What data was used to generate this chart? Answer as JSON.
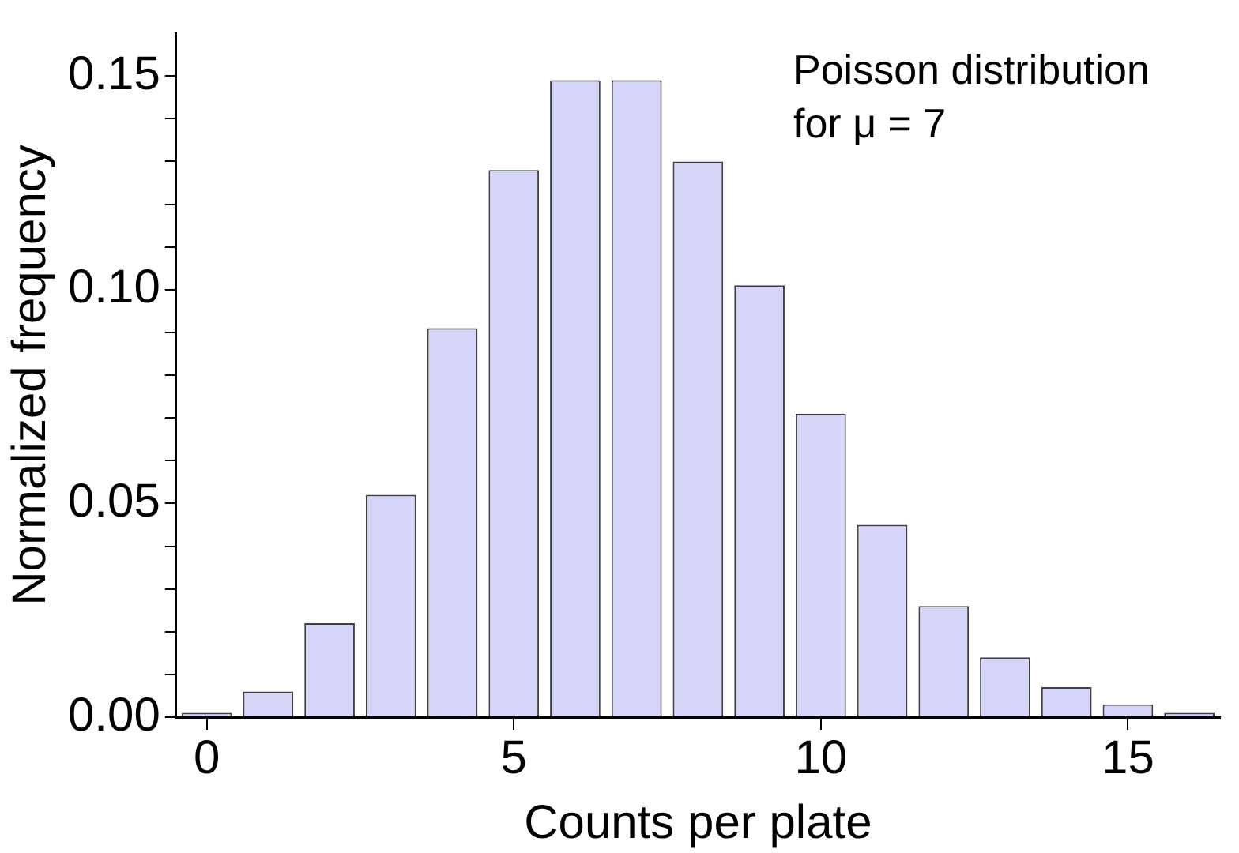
{
  "chart_data": {
    "type": "bar",
    "xlabel": "Counts per plate",
    "ylabel": "Normalized frequency",
    "x": [
      0,
      1,
      2,
      3,
      4,
      5,
      6,
      7,
      8,
      9,
      10,
      11,
      12,
      13,
      14,
      15,
      16
    ],
    "values": [
      0.001,
      0.006,
      0.022,
      0.052,
      0.091,
      0.128,
      0.149,
      0.149,
      0.13,
      0.101,
      0.071,
      0.045,
      0.026,
      0.014,
      0.007,
      0.003,
      0.001
    ],
    "color": "#d5d5fa",
    "xlim": [
      -0.5,
      16.5
    ],
    "xticks": [
      0,
      5,
      10,
      15
    ],
    "ylim": [
      0,
      0.16
    ],
    "yticks": [
      {
        "value": 0,
        "label": "0.00"
      },
      {
        "value": 0.01,
        "label": null
      },
      {
        "value": 0.02,
        "label": null
      },
      {
        "value": 0.03,
        "label": null
      },
      {
        "value": 0.04,
        "label": null
      },
      {
        "value": 0.05,
        "label": "0.05"
      },
      {
        "value": 0.06,
        "label": null
      },
      {
        "value": 0.07,
        "label": null
      },
      {
        "value": 0.08,
        "label": null
      },
      {
        "value": 0.09,
        "label": null
      },
      {
        "value": 0.1,
        "label": "0.10"
      },
      {
        "value": 0.11,
        "label": null
      },
      {
        "value": 0.12,
        "label": null
      },
      {
        "value": 0.13,
        "label": null
      },
      {
        "value": 0.14,
        "label": null
      },
      {
        "value": 0.15,
        "label": "0.15"
      }
    ],
    "annotations": [
      "Poisson distribution for μ = 7"
    ],
    "grid": false,
    "legend": false
  }
}
